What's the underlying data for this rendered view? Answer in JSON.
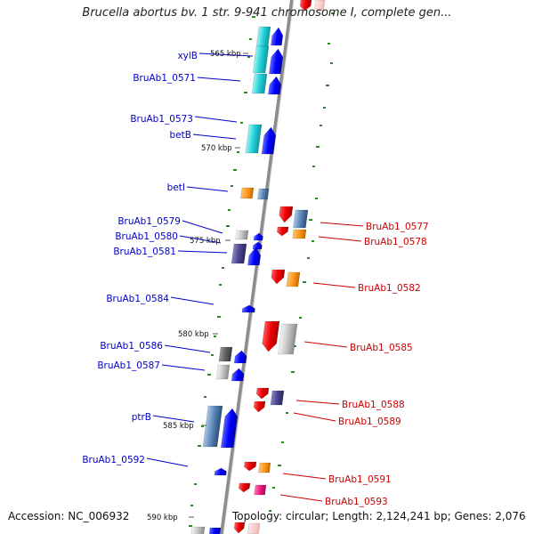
{
  "title": "Brucella abortus bv. 1 str. 9-941 chromosome I, complete gen...",
  "footer": {
    "accession": "Accession: NC_006932",
    "topology": "Topology: circular; Length: 2,124,241 bp; Genes: 2,076"
  },
  "colors": {
    "backbone": "#8c8c8c",
    "left_label": "#0000cc",
    "right_label": "#cc0000",
    "tick": "#2a8a2a"
  },
  "kbp_labels": [
    "565 kbp",
    "570 kbp",
    "575 kbp",
    "580 kbp",
    "585 kbp",
    "590 kbp"
  ],
  "left_genes": [
    "xylB",
    "BruAb1_0571",
    "BruAb1_0573",
    "betB",
    "betI",
    "BruAb1_0579",
    "BruAb1_0580",
    "BruAb1_0581",
    "BruAb1_0584",
    "BruAb1_0586",
    "BruAb1_0587",
    "ptrB",
    "BruAb1_0592"
  ],
  "right_genes": [
    "BruAb1_0577",
    "BruAb1_0578",
    "BruAb1_0582",
    "BruAb1_0585",
    "BruAb1_0588",
    "BruAb1_0589",
    "BruAb1_0591",
    "BruAb1_0593"
  ]
}
